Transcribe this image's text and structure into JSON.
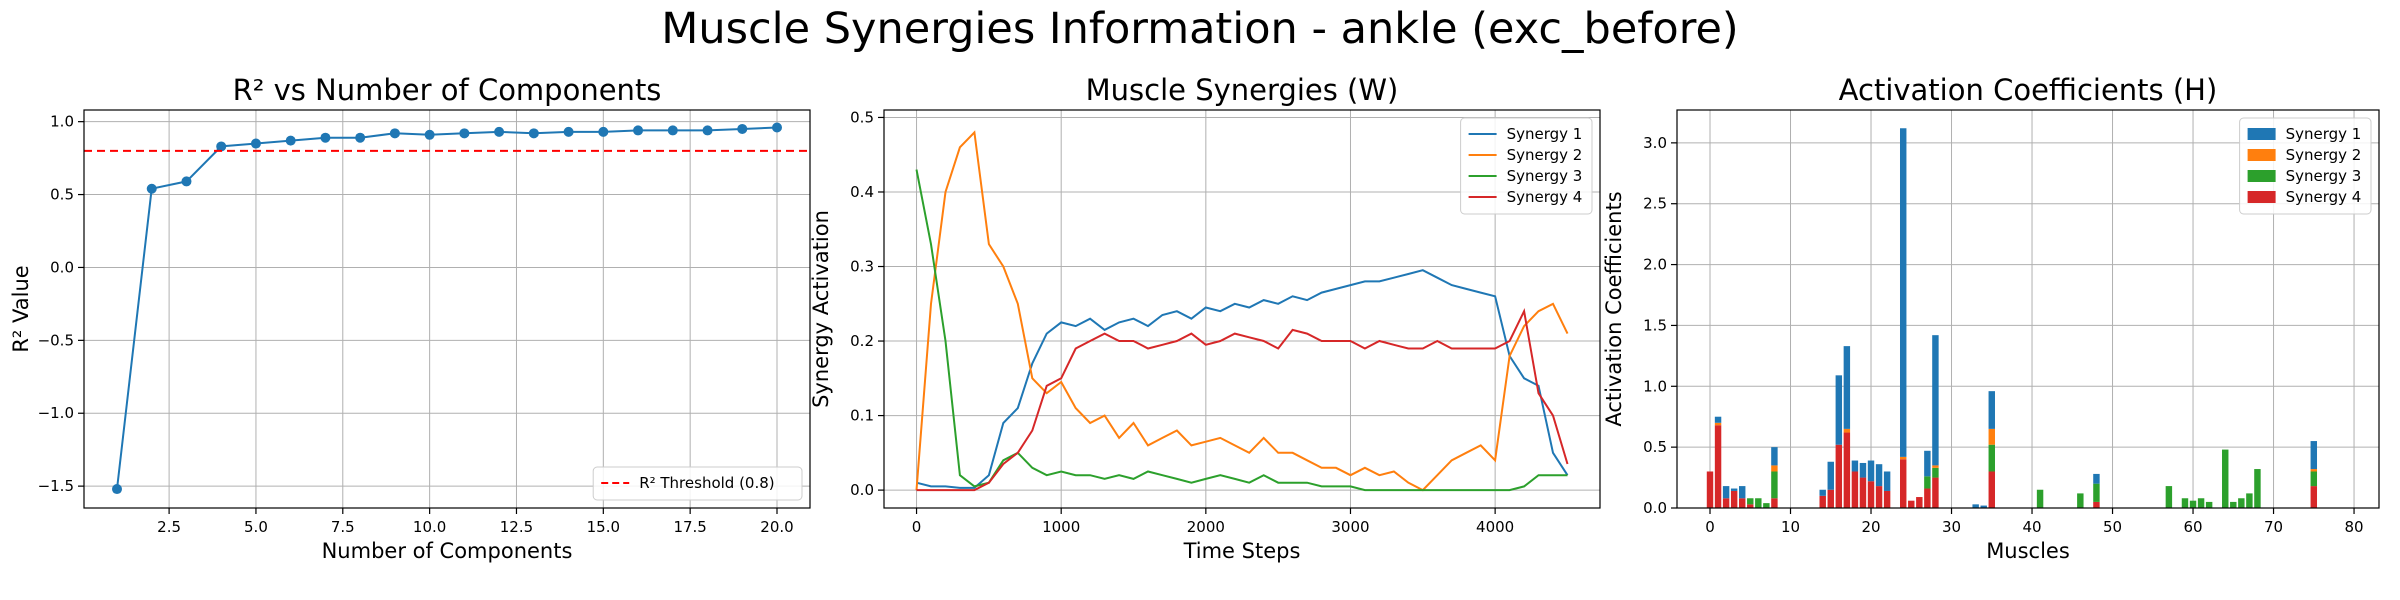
{
  "figure": {
    "title": "Muscle Synergies Information - ankle (exc_before)"
  },
  "chart_data": [
    {
      "type": "line",
      "title": "R² vs Number of Components",
      "xlabel": "Number of Components",
      "ylabel": "R² Value",
      "xlim": [
        0.05,
        20.95
      ],
      "ylim": [
        -1.65,
        1.08
      ],
      "xticks": [
        2.5,
        5.0,
        7.5,
        10.0,
        12.5,
        15.0,
        17.5,
        20.0
      ],
      "yticks": [
        -1.5,
        -1.0,
        -0.5,
        0.0,
        0.5,
        1.0
      ],
      "grid": true,
      "legend": "lower-right",
      "series": [
        {
          "color": "#1f77b4",
          "marker": "circle",
          "x": [
            1,
            2,
            3,
            4,
            5,
            6,
            7,
            8,
            9,
            10,
            11,
            12,
            13,
            14,
            15,
            16,
            17,
            18,
            19,
            20
          ],
          "y": [
            -1.52,
            0.54,
            0.59,
            0.83,
            0.85,
            0.87,
            0.89,
            0.89,
            0.92,
            0.91,
            0.92,
            0.93,
            0.92,
            0.93,
            0.93,
            0.94,
            0.94,
            0.94,
            0.95,
            0.96
          ]
        }
      ],
      "threshold": {
        "label": "R² Threshold (0.8)",
        "value": 0.8,
        "color": "#ff0000"
      }
    },
    {
      "type": "line",
      "title": "Muscle Synergies (W)",
      "xlabel": "Time Steps",
      "ylabel": "Synergy Activation",
      "xlim": [
        -225,
        4725
      ],
      "ylim": [
        -0.024,
        0.51
      ],
      "xticks": [
        0,
        1000,
        2000,
        3000,
        4000
      ],
      "yticks": [
        0.0,
        0.1,
        0.2,
        0.3,
        0.4,
        0.5
      ],
      "grid": true,
      "legend": "top-right",
      "x": [
        0,
        100,
        200,
        300,
        400,
        500,
        600,
        700,
        800,
        900,
        1000,
        1100,
        1200,
        1300,
        1400,
        1500,
        1600,
        1700,
        1800,
        1900,
        2000,
        2100,
        2200,
        2300,
        2400,
        2500,
        2600,
        2700,
        2800,
        2900,
        3000,
        3100,
        3200,
        3300,
        3400,
        3500,
        3600,
        3700,
        3800,
        3900,
        4000,
        4100,
        4200,
        4300,
        4400,
        4500
      ],
      "series": [
        {
          "name": "Synergy 1",
          "color": "#1f77b4",
          "y": [
            0.01,
            0.005,
            0.005,
            0.003,
            0.003,
            0.02,
            0.09,
            0.11,
            0.17,
            0.21,
            0.225,
            0.22,
            0.23,
            0.215,
            0.225,
            0.23,
            0.22,
            0.235,
            0.24,
            0.23,
            0.245,
            0.24,
            0.25,
            0.245,
            0.255,
            0.25,
            0.26,
            0.255,
            0.265,
            0.27,
            0.275,
            0.28,
            0.28,
            0.285,
            0.29,
            0.295,
            0.285,
            0.275,
            0.27,
            0.265,
            0.26,
            0.18,
            0.15,
            0.14,
            0.05,
            0.02
          ]
        },
        {
          "name": "Synergy 2",
          "color": "#ff7f0e",
          "y": [
            0.0,
            0.25,
            0.4,
            0.46,
            0.48,
            0.33,
            0.3,
            0.25,
            0.15,
            0.13,
            0.145,
            0.11,
            0.09,
            0.1,
            0.07,
            0.09,
            0.06,
            0.07,
            0.08,
            0.06,
            0.065,
            0.07,
            0.06,
            0.05,
            0.07,
            0.05,
            0.05,
            0.04,
            0.03,
            0.03,
            0.02,
            0.03,
            0.02,
            0.025,
            0.01,
            0.0,
            0.02,
            0.04,
            0.05,
            0.06,
            0.04,
            0.18,
            0.22,
            0.24,
            0.25,
            0.21
          ]
        },
        {
          "name": "Synergy 3",
          "color": "#2ca02c",
          "y": [
            0.43,
            0.33,
            0.2,
            0.02,
            0.005,
            0.01,
            0.04,
            0.05,
            0.03,
            0.02,
            0.025,
            0.02,
            0.02,
            0.015,
            0.02,
            0.015,
            0.025,
            0.02,
            0.015,
            0.01,
            0.015,
            0.02,
            0.015,
            0.01,
            0.02,
            0.01,
            0.01,
            0.01,
            0.005,
            0.005,
            0.005,
            0.0,
            0.0,
            0.0,
            0.0,
            0.0,
            0.0,
            0.0,
            0.0,
            0.0,
            0.0,
            0.0,
            0.005,
            0.02,
            0.02,
            0.02
          ]
        },
        {
          "name": "Synergy 4",
          "color": "#d62728",
          "y": [
            0.0,
            0.0,
            0.0,
            0.0,
            0.0,
            0.01,
            0.035,
            0.05,
            0.08,
            0.14,
            0.15,
            0.19,
            0.2,
            0.21,
            0.2,
            0.2,
            0.19,
            0.195,
            0.2,
            0.21,
            0.195,
            0.2,
            0.21,
            0.205,
            0.2,
            0.19,
            0.215,
            0.21,
            0.2,
            0.2,
            0.2,
            0.19,
            0.2,
            0.195,
            0.19,
            0.19,
            0.2,
            0.19,
            0.19,
            0.19,
            0.19,
            0.2,
            0.24,
            0.13,
            0.1,
            0.035
          ]
        }
      ]
    },
    {
      "type": "bar",
      "stacked": true,
      "title": "Activation Coefficients (H)",
      "xlabel": "Muscles",
      "ylabel": "Activation Coefficients",
      "xlim": [
        -4.1,
        83.1
      ],
      "ylim": [
        0,
        3.27
      ],
      "xticks": [
        0,
        10,
        20,
        30,
        40,
        50,
        60,
        70,
        80
      ],
      "yticks": [
        0.0,
        0.5,
        1.0,
        1.5,
        2.0,
        2.5,
        3.0
      ],
      "grid": true,
      "legend": "top-right",
      "categories": [
        0,
        1,
        2,
        3,
        4,
        5,
        6,
        7,
        8,
        14,
        15,
        16,
        17,
        18,
        19,
        20,
        21,
        22,
        24,
        25,
        26,
        27,
        28,
        33,
        34,
        35,
        41,
        46,
        48,
        57,
        59,
        60,
        61,
        62,
        64,
        65,
        66,
        67,
        68,
        75
      ],
      "series": [
        {
          "name": "Synergy 4",
          "color": "#d62728",
          "values": [
            0.3,
            0.68,
            0.08,
            0.14,
            0.08,
            0.03,
            0.0,
            0.0,
            0.08,
            0.1,
            0.15,
            0.52,
            0.62,
            0.3,
            0.25,
            0.22,
            0.18,
            0.14,
            0.4,
            0.06,
            0.09,
            0.16,
            0.25,
            0.0,
            0.0,
            0.3,
            0.0,
            0.0,
            0.05,
            0.0,
            0.0,
            0.0,
            0.0,
            0.0,
            0.0,
            0.0,
            0.0,
            0.0,
            0.0,
            0.18
          ]
        },
        {
          "name": "Synergy 3",
          "color": "#2ca02c",
          "values": [
            0.0,
            0.0,
            0.0,
            0.0,
            0.0,
            0.05,
            0.08,
            0.04,
            0.22,
            0.0,
            0.0,
            0.0,
            0.0,
            0.0,
            0.0,
            0.0,
            0.0,
            0.0,
            0.0,
            0.0,
            0.0,
            0.1,
            0.08,
            0.0,
            0.0,
            0.22,
            0.15,
            0.12,
            0.15,
            0.18,
            0.08,
            0.06,
            0.08,
            0.05,
            0.48,
            0.05,
            0.08,
            0.12,
            0.32,
            0.12
          ]
        },
        {
          "name": "Synergy 2",
          "color": "#ff7f0e",
          "values": [
            0.0,
            0.02,
            0.0,
            0.0,
            0.0,
            0.0,
            0.0,
            0.0,
            0.05,
            0.0,
            0.0,
            0.0,
            0.03,
            0.0,
            0.0,
            0.0,
            0.0,
            0.0,
            0.02,
            0.0,
            0.0,
            0.0,
            0.02,
            0.0,
            0.0,
            0.13,
            0.0,
            0.0,
            0.0,
            0.0,
            0.0,
            0.0,
            0.0,
            0.0,
            0.0,
            0.0,
            0.0,
            0.0,
            0.0,
            0.02
          ]
        },
        {
          "name": "Synergy 1",
          "color": "#1f77b4",
          "values": [
            0.0,
            0.05,
            0.1,
            0.02,
            0.1,
            0.0,
            0.0,
            0.0,
            0.15,
            0.05,
            0.23,
            0.57,
            0.68,
            0.09,
            0.12,
            0.17,
            0.18,
            0.16,
            2.7,
            0.0,
            0.0,
            0.21,
            1.07,
            0.03,
            0.02,
            0.31,
            0.0,
            0.0,
            0.08,
            0.0,
            0.0,
            0.0,
            0.0,
            0.0,
            0.0,
            0.0,
            0.0,
            0.0,
            0.0,
            0.23
          ]
        }
      ]
    }
  ]
}
